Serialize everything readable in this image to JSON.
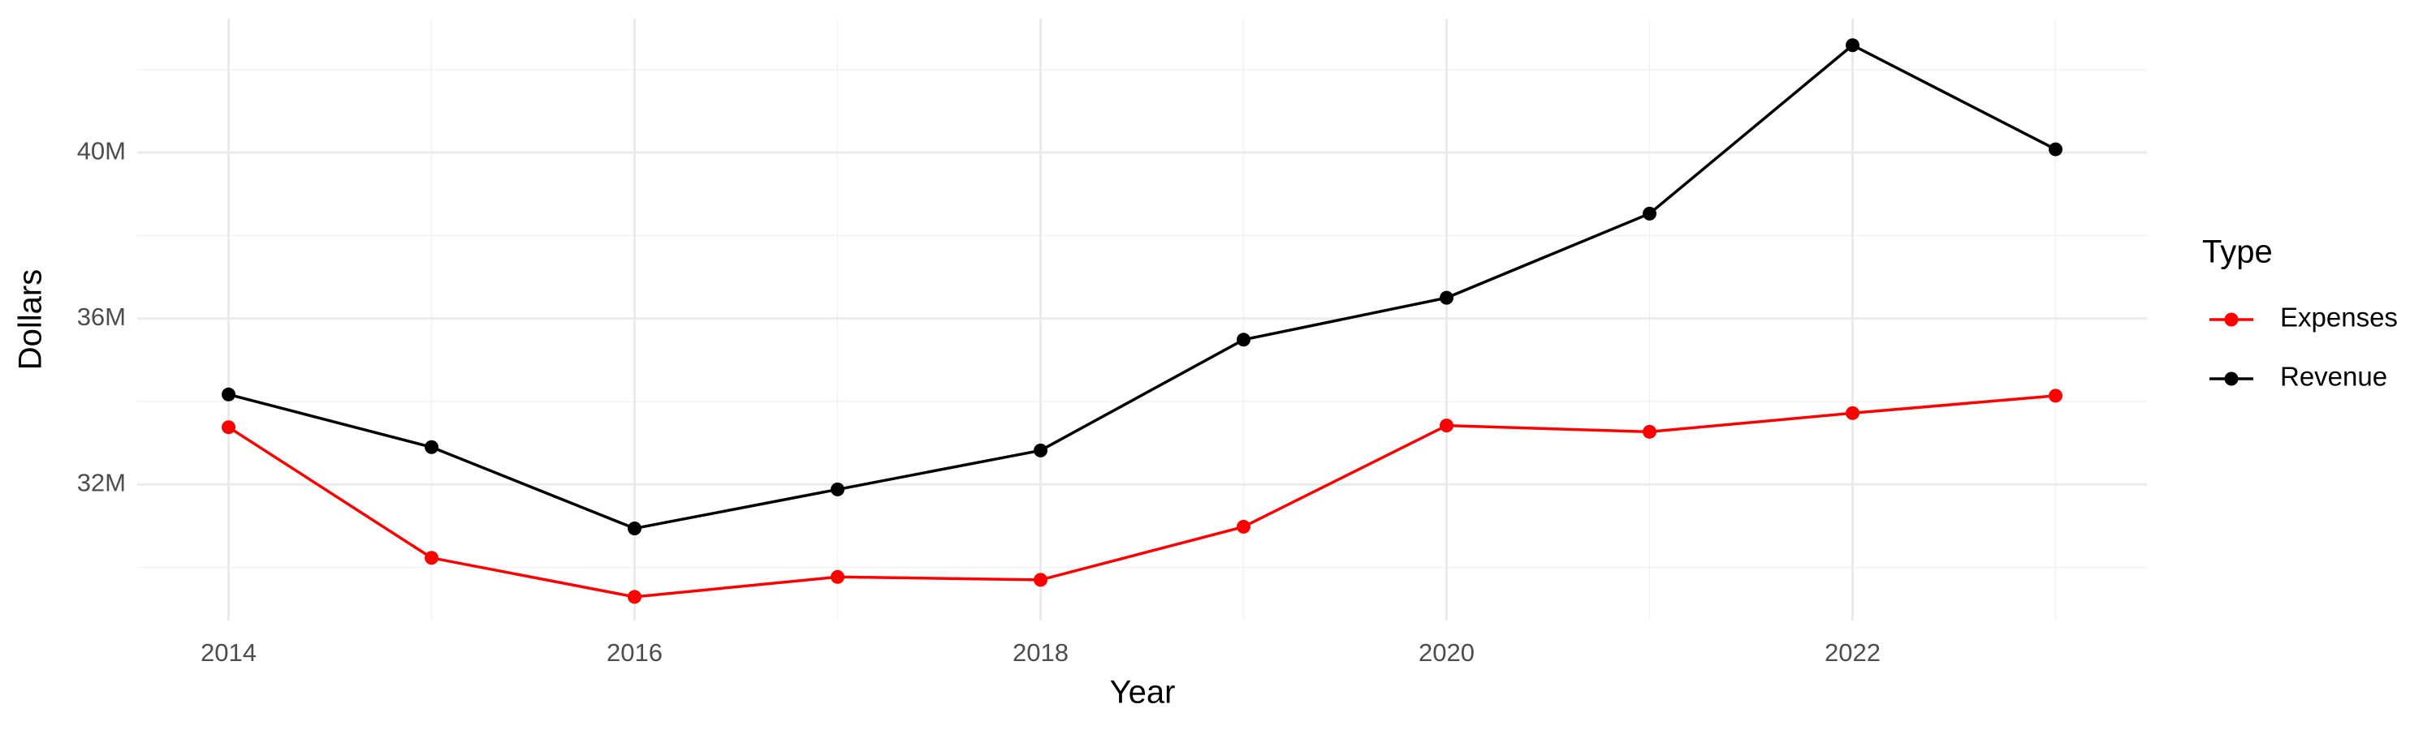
{
  "chart_data": {
    "type": "line",
    "x_label": "Year",
    "y_label": "Dollars",
    "legend_title": "Type",
    "legend_position": "right",
    "grid": true,
    "x": [
      2014,
      2015,
      2016,
      2017,
      2018,
      2019,
      2020,
      2021,
      2022,
      2023
    ],
    "series": [
      {
        "name": "Expenses",
        "color": "#ff0000",
        "values": [
          33380000,
          30230000,
          29290000,
          29770000,
          29700000,
          30980000,
          33420000,
          33270000,
          33720000,
          34140000
        ]
      },
      {
        "name": "Revenue",
        "color": "#000000",
        "values": [
          34170000,
          32900000,
          30940000,
          31880000,
          32820000,
          35490000,
          36500000,
          38530000,
          42590000,
          40080000
        ]
      }
    ],
    "xlim": [
      2013.55,
      2023.45
    ],
    "xticks": [
      2014,
      2016,
      2018,
      2020,
      2022
    ],
    "ylim": [
      28720000,
      43230000
    ],
    "yticks": [
      {
        "value": 32000000,
        "label": "32M"
      },
      {
        "value": 36000000,
        "label": "36M"
      },
      {
        "value": 40000000,
        "label": "40M"
      }
    ]
  }
}
